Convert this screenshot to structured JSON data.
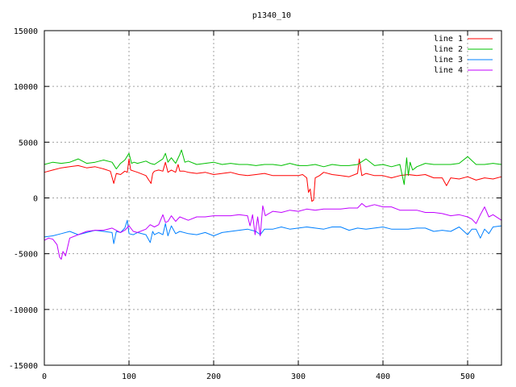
{
  "chart_data": {
    "type": "line",
    "title": "p1340_10",
    "xlabel": "",
    "ylabel": "",
    "xlim": [
      0,
      540
    ],
    "ylim": [
      -15000,
      15000
    ],
    "xticks": [
      0,
      100,
      200,
      300,
      400,
      500
    ],
    "yticks": [
      -15000,
      -10000,
      -5000,
      0,
      5000,
      10000,
      15000
    ],
    "grid": true,
    "legend_position": "top-right",
    "series": [
      {
        "name": "line 1",
        "color": "#ff0000",
        "x": [
          0,
          10,
          20,
          30,
          40,
          50,
          60,
          70,
          78,
          82,
          85,
          90,
          95,
          98,
          100,
          102,
          106,
          110,
          120,
          126,
          128,
          130,
          135,
          140,
          143,
          146,
          150,
          155,
          158,
          160,
          165,
          170,
          180,
          190,
          200,
          210,
          220,
          230,
          240,
          250,
          260,
          270,
          280,
          290,
          300,
          305,
          310,
          312,
          314,
          316,
          318,
          320,
          325,
          330,
          340,
          350,
          360,
          370,
          372,
          375,
          380,
          390,
          400,
          410,
          420,
          430,
          440,
          450,
          460,
          470,
          475,
          480,
          490,
          500,
          510,
          520,
          530,
          540
        ],
        "y": [
          2300,
          2500,
          2700,
          2800,
          2900,
          2700,
          2800,
          2600,
          2400,
          1300,
          2200,
          2100,
          2400,
          2300,
          3500,
          2500,
          2400,
          2300,
          2000,
          1300,
          2200,
          2400,
          2500,
          2400,
          3200,
          2300,
          2500,
          2300,
          3000,
          2400,
          2400,
          2300,
          2200,
          2300,
          2100,
          2200,
          2300,
          2100,
          2000,
          2100,
          2200,
          2000,
          2000,
          2000,
          2000,
          2100,
          1800,
          500,
          800,
          -300,
          -200,
          1800,
          2000,
          2300,
          2100,
          2000,
          1900,
          2200,
          3500,
          2000,
          2200,
          2000,
          2000,
          1800,
          2000,
          2100,
          2000,
          2100,
          1800,
          1800,
          1100,
          1800,
          1700,
          1900,
          1600,
          1800,
          1700,
          1900
        ]
      },
      {
        "name": "line 2",
        "color": "#00c000",
        "x": [
          0,
          10,
          20,
          30,
          40,
          50,
          60,
          70,
          80,
          85,
          90,
          95,
          100,
          103,
          106,
          110,
          120,
          125,
          130,
          140,
          143,
          146,
          150,
          155,
          160,
          162,
          166,
          170,
          180,
          190,
          200,
          210,
          220,
          230,
          240,
          250,
          260,
          270,
          280,
          290,
          300,
          310,
          320,
          330,
          340,
          350,
          360,
          370,
          380,
          390,
          400,
          410,
          420,
          425,
          428,
          430,
          432,
          435,
          440,
          450,
          460,
          470,
          480,
          490,
          500,
          510,
          520,
          530,
          540
        ],
        "y": [
          3000,
          3200,
          3100,
          3200,
          3500,
          3100,
          3200,
          3400,
          3200,
          2600,
          3100,
          3400,
          4000,
          3100,
          3200,
          3100,
          3300,
          3100,
          3000,
          3500,
          4000,
          3200,
          3600,
          3100,
          3900,
          4300,
          3200,
          3300,
          3000,
          3100,
          3200,
          3000,
          3100,
          3000,
          3000,
          2900,
          3000,
          3000,
          2900,
          3100,
          2900,
          2900,
          3000,
          2800,
          3000,
          2900,
          2900,
          3000,
          3500,
          2900,
          3000,
          2800,
          3000,
          1200,
          3600,
          2000,
          3200,
          2500,
          2800,
          3100,
          3000,
          3000,
          3000,
          3100,
          3700,
          3000,
          3000,
          3100,
          3000
        ]
      },
      {
        "name": "line 3",
        "color": "#0080ff",
        "x": [
          0,
          10,
          20,
          30,
          40,
          50,
          60,
          70,
          80,
          82,
          85,
          90,
          95,
          98,
          100,
          105,
          110,
          120,
          125,
          128,
          130,
          135,
          140,
          143,
          146,
          150,
          155,
          160,
          170,
          180,
          190,
          200,
          210,
          220,
          230,
          240,
          250,
          255,
          260,
          270,
          280,
          290,
          300,
          310,
          320,
          330,
          340,
          350,
          360,
          370,
          380,
          390,
          400,
          410,
          420,
          430,
          440,
          450,
          460,
          470,
          480,
          490,
          500,
          505,
          510,
          515,
          520,
          525,
          530,
          540
        ],
        "y": [
          -3500,
          -3400,
          -3200,
          -3000,
          -3300,
          -3100,
          -2900,
          -3000,
          -3100,
          -4100,
          -3000,
          -3100,
          -2700,
          -2000,
          -3200,
          -3300,
          -3100,
          -3300,
          -4000,
          -3000,
          -3300,
          -3100,
          -3300,
          -2300,
          -3400,
          -2500,
          -3200,
          -3000,
          -3200,
          -3300,
          -3100,
          -3400,
          -3100,
          -3000,
          -2900,
          -2800,
          -3000,
          -3300,
          -2800,
          -2800,
          -2600,
          -2800,
          -2700,
          -2600,
          -2700,
          -2800,
          -2600,
          -2600,
          -2900,
          -2700,
          -2800,
          -2700,
          -2600,
          -2800,
          -2800,
          -2800,
          -2700,
          -2700,
          -3000,
          -2900,
          -3000,
          -2600,
          -3300,
          -2800,
          -2800,
          -3600,
          -2800,
          -3200,
          -2600,
          -2500
        ]
      },
      {
        "name": "line 4",
        "color": "#c000ff",
        "x": [
          0,
          5,
          10,
          15,
          18,
          20,
          22,
          25,
          30,
          40,
          50,
          60,
          70,
          80,
          90,
          95,
          100,
          105,
          110,
          120,
          125,
          130,
          135,
          140,
          143,
          146,
          150,
          155,
          160,
          170,
          180,
          190,
          200,
          210,
          220,
          230,
          240,
          243,
          246,
          249,
          252,
          255,
          258,
          261,
          265,
          270,
          280,
          290,
          300,
          310,
          320,
          330,
          340,
          350,
          360,
          370,
          375,
          380,
          390,
          400,
          410,
          420,
          430,
          440,
          450,
          460,
          470,
          480,
          490,
          500,
          505,
          510,
          515,
          520,
          525,
          530,
          540
        ],
        "y": [
          -3800,
          -3600,
          -3700,
          -4200,
          -5300,
          -5500,
          -4800,
          -5200,
          -3600,
          -3300,
          -3000,
          -2900,
          -2900,
          -2700,
          -3100,
          -2900,
          -2500,
          -3000,
          -3100,
          -2800,
          -2400,
          -2600,
          -2400,
          -1500,
          -2200,
          -2100,
          -1600,
          -2100,
          -1700,
          -2000,
          -1700,
          -1700,
          -1600,
          -1600,
          -1600,
          -1500,
          -1600,
          -2500,
          -1500,
          -3300,
          -1700,
          -3400,
          -700,
          -1600,
          -1400,
          -1200,
          -1300,
          -1100,
          -1200,
          -1000,
          -1100,
          -1000,
          -1000,
          -1000,
          -900,
          -900,
          -500,
          -800,
          -600,
          -800,
          -800,
          -1100,
          -1100,
          -1100,
          -1300,
          -1300,
          -1400,
          -1600,
          -1500,
          -1700,
          -1900,
          -2300,
          -1500,
          -800,
          -1700,
          -1500,
          -2000
        ]
      }
    ]
  }
}
